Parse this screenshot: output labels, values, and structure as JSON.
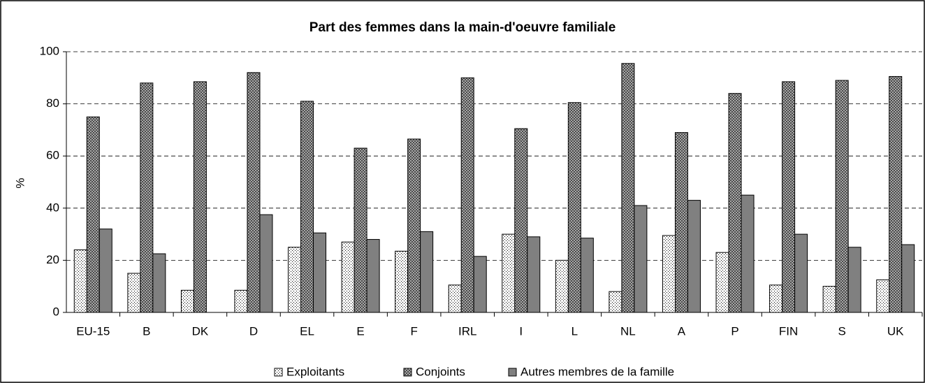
{
  "chart_data": {
    "type": "bar",
    "title": "Part des femmes dans la main-d'oeuvre familiale",
    "y_label": "%",
    "categories": [
      "EU-15",
      "B",
      "DK",
      "D",
      "EL",
      "E",
      "F",
      "IRL",
      "I",
      "L",
      "NL",
      "A",
      "P",
      "FIN",
      "S",
      "UK"
    ],
    "series": [
      {
        "name": "Exploitants",
        "color": "#ffffff",
        "values": [
          24,
          15,
          8.5,
          8.5,
          25,
          27,
          23.5,
          10.5,
          30,
          20,
          8,
          29.5,
          23,
          10.5,
          10,
          12.5
        ]
      },
      {
        "name": "Conjoints",
        "color": "#c0c0c0",
        "values": [
          75,
          88,
          88.5,
          92,
          81,
          63,
          66.5,
          90,
          70.5,
          80.5,
          95.5,
          69,
          84,
          88.5,
          89,
          90.5
        ]
      },
      {
        "name": "Autres membres de la famille",
        "color": "#808080",
        "values": [
          32,
          22.5,
          null,
          37.5,
          30.5,
          28,
          31,
          21.5,
          29,
          28.5,
          41,
          43,
          45,
          30,
          25,
          26
        ]
      }
    ],
    "ylim": [
      0,
      100
    ],
    "yticks": [
      0,
      20,
      40,
      60,
      80,
      100
    ],
    "grid": true,
    "legend": "bottom"
  }
}
